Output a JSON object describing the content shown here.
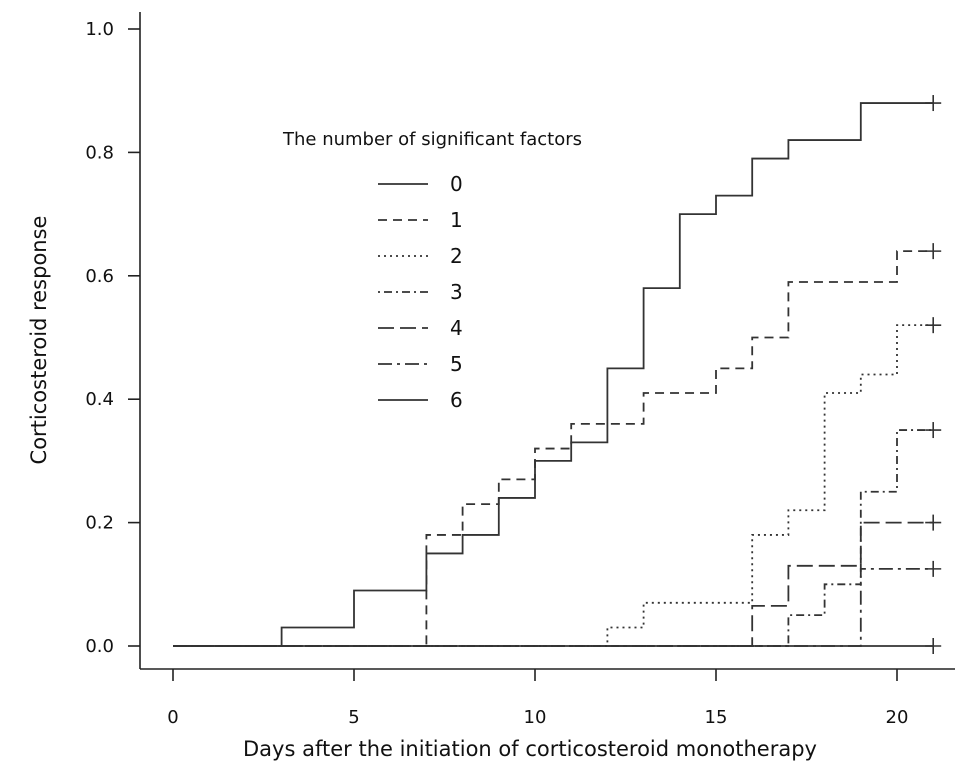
{
  "chart_data": {
    "type": "line",
    "step": true,
    "title": "",
    "xlabel": "Days after the initiation of corticosteroid monotherapy",
    "ylabel": "Corticosteroid response",
    "xlim": [
      0,
      21
    ],
    "ylim": [
      0,
      1.0
    ],
    "x_ticks": [
      0,
      5,
      10,
      15,
      20
    ],
    "y_ticks": [
      0.0,
      0.2,
      0.4,
      0.6,
      0.8,
      1.0
    ],
    "x_tick_labels": [
      "0",
      "5",
      "10",
      "15",
      "20"
    ],
    "y_tick_labels": [
      "0.0",
      "0.2",
      "0.4",
      "0.6",
      "0.8",
      "1.0"
    ],
    "grid": false,
    "legend": {
      "title": "The number of significant factors",
      "placement": "upper-left-center"
    },
    "series": [
      {
        "name": "0",
        "line_style": "solid",
        "points": [
          [
            0,
            0
          ],
          [
            3,
            0.03
          ],
          [
            5,
            0.09
          ],
          [
            7,
            0.15
          ],
          [
            8,
            0.18
          ],
          [
            9,
            0.24
          ],
          [
            10,
            0.3
          ],
          [
            11,
            0.33
          ],
          [
            12,
            0.45
          ],
          [
            13,
            0.58
          ],
          [
            14,
            0.7
          ],
          [
            15,
            0.73
          ],
          [
            16,
            0.79
          ],
          [
            17,
            0.82
          ],
          [
            19,
            0.88
          ],
          [
            21,
            0.88
          ]
        ],
        "censor_x": 21
      },
      {
        "name": "1",
        "line_style": "dashed",
        "points": [
          [
            0,
            0
          ],
          [
            7,
            0.18
          ],
          [
            8,
            0.23
          ],
          [
            9,
            0.27
          ],
          [
            10,
            0.32
          ],
          [
            11,
            0.36
          ],
          [
            13,
            0.41
          ],
          [
            15,
            0.45
          ],
          [
            16,
            0.5
          ],
          [
            17,
            0.59
          ],
          [
            20,
            0.64
          ],
          [
            21,
            0.64
          ]
        ],
        "censor_x": 21
      },
      {
        "name": "2",
        "line_style": "dotted",
        "points": [
          [
            0,
            0
          ],
          [
            12,
            0.03
          ],
          [
            13,
            0.07
          ],
          [
            16,
            0.18
          ],
          [
            17,
            0.22
          ],
          [
            18,
            0.41
          ],
          [
            19,
            0.44
          ],
          [
            20,
            0.52
          ],
          [
            21,
            0.52
          ]
        ],
        "censor_x": 21
      },
      {
        "name": "3",
        "line_style": "dot-dash",
        "points": [
          [
            0,
            0
          ],
          [
            17,
            0.05
          ],
          [
            18,
            0.1
          ],
          [
            19,
            0.25
          ],
          [
            20,
            0.35
          ],
          [
            21,
            0.35
          ]
        ],
        "censor_x": 21
      },
      {
        "name": "4",
        "line_style": "long-dash",
        "points": [
          [
            0,
            0
          ],
          [
            16,
            0.065
          ],
          [
            17,
            0.13
          ],
          [
            19,
            0.2
          ],
          [
            21,
            0.2
          ]
        ],
        "censor_x": 21
      },
      {
        "name": "5",
        "line_style": "long-dash-dot",
        "points": [
          [
            0,
            0
          ],
          [
            19,
            0.125
          ],
          [
            21,
            0.125
          ]
        ],
        "censor_x": 21
      },
      {
        "name": "6",
        "line_style": "solid",
        "points": [
          [
            0,
            0
          ],
          [
            21,
            0
          ]
        ],
        "censor_x": 21
      }
    ]
  }
}
